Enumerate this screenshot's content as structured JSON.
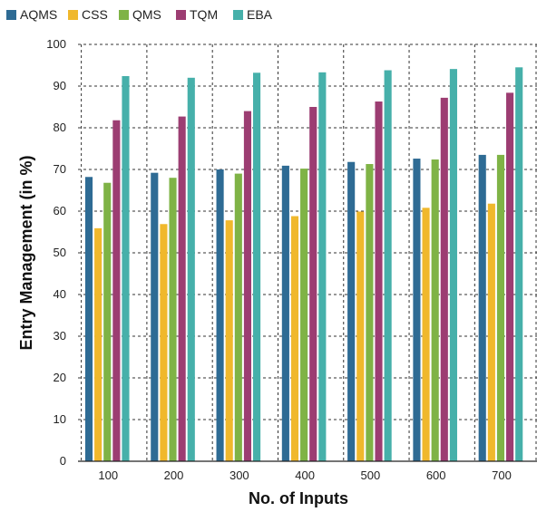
{
  "chart_data": {
    "type": "bar",
    "title": "",
    "xlabel": "No. of Inputs",
    "ylabel": "Entry Management (in %)",
    "ylim": [
      0,
      100
    ],
    "yticks": [
      0,
      10,
      20,
      30,
      40,
      50,
      60,
      70,
      80,
      90,
      100
    ],
    "categories": [
      "100",
      "200",
      "300",
      "400",
      "500",
      "600",
      "700"
    ],
    "legend_position": "top-left",
    "grid": "dashed vertical and horizontal",
    "series": [
      {
        "name": "AQMS",
        "color": "#2e6b94",
        "values": [
          68.2,
          69.2,
          70.0,
          70.9,
          71.8,
          72.6,
          73.5
        ]
      },
      {
        "name": "CSS",
        "color": "#f0b82c",
        "values": [
          55.9,
          56.9,
          57.8,
          58.8,
          59.9,
          60.8,
          61.8
        ]
      },
      {
        "name": "QMS",
        "color": "#7fb346",
        "values": [
          66.8,
          68.0,
          69.0,
          70.2,
          71.3,
          72.4,
          73.5
        ]
      },
      {
        "name": "TQM",
        "color": "#9c3d72",
        "values": [
          81.8,
          82.7,
          84.0,
          85.0,
          86.3,
          87.2,
          88.4
        ]
      },
      {
        "name": "EBA",
        "color": "#46b0aa",
        "values": [
          92.4,
          92.0,
          93.2,
          93.3,
          93.8,
          94.1,
          94.5
        ]
      }
    ]
  }
}
